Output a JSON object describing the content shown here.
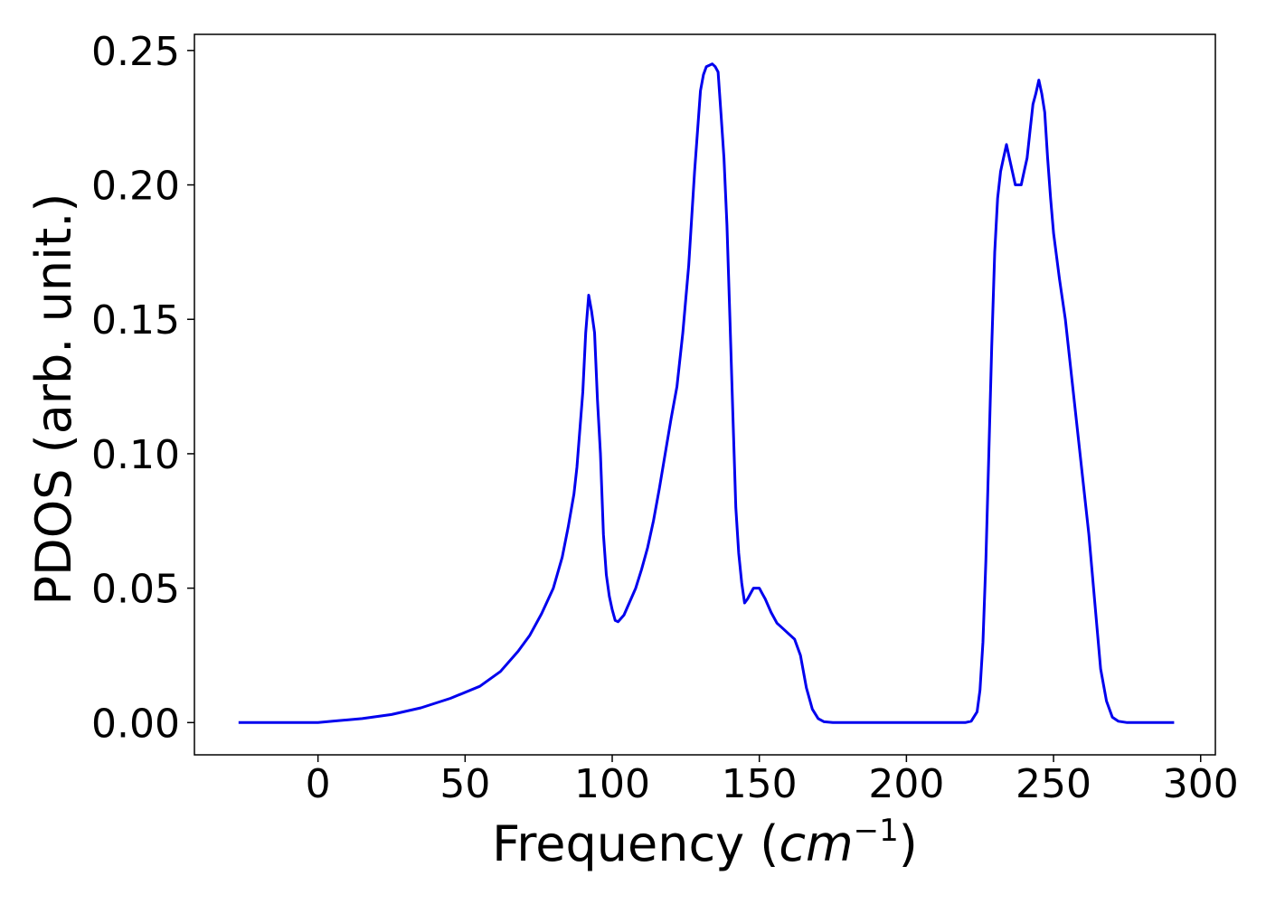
{
  "chart_data": {
    "type": "line",
    "title": "",
    "xlabel": "Frequency (",
    "xlabel_math": "cm",
    "xlabel_sup": "−1",
    "xlabel_close": ")",
    "ylabel": "PDOS (arb. unit.)",
    "xlim": [
      -42,
      305
    ],
    "ylim": [
      -0.012,
      0.256
    ],
    "xticks": [
      0,
      50,
      100,
      150,
      200,
      250,
      300
    ],
    "xtick_labels": [
      "0",
      "50",
      "100",
      "150",
      "200",
      "250",
      "300"
    ],
    "yticks": [
      0.0,
      0.05,
      0.1,
      0.15,
      0.2,
      0.25
    ],
    "ytick_labels": [
      "0.00",
      "0.05",
      "0.10",
      "0.15",
      "0.20",
      "0.25"
    ],
    "grid": false,
    "legend": "none",
    "series": [
      {
        "color": "#0000ee",
        "x": [
          -27,
          -10,
          0,
          5,
          15,
          25,
          35,
          45,
          55,
          62,
          68,
          72,
          76,
          80,
          83,
          85,
          87,
          88,
          90,
          91,
          92,
          93,
          94,
          95,
          96,
          97,
          98,
          99,
          100,
          101,
          102,
          104,
          106,
          108,
          110,
          112,
          114,
          116,
          118,
          120,
          122,
          124,
          126,
          128,
          130,
          131,
          132,
          133,
          134,
          135,
          136,
          137,
          138,
          139,
          140,
          141,
          142,
          143,
          144,
          145,
          146,
          147,
          148,
          149,
          150,
          151,
          152,
          154,
          156,
          158,
          160,
          162,
          164,
          166,
          168,
          170,
          172,
          175,
          180,
          200,
          220,
          222,
          224,
          225,
          226,
          227,
          228,
          229,
          230,
          231,
          232,
          233,
          234,
          235,
          236,
          237,
          238,
          239,
          240,
          241,
          242,
          243,
          244,
          245,
          246,
          247,
          248,
          249,
          250,
          252,
          254,
          256,
          258,
          260,
          262,
          264,
          266,
          268,
          270,
          272,
          275,
          280,
          291
        ],
        "y": [
          0.0,
          0.0,
          0.0,
          0.0005,
          0.0015,
          0.003,
          0.0055,
          0.009,
          0.0135,
          0.019,
          0.0265,
          0.0325,
          0.0405,
          0.05,
          0.0615,
          0.0725,
          0.085,
          0.095,
          0.123,
          0.145,
          0.159,
          0.153,
          0.145,
          0.12,
          0.1,
          0.07,
          0.055,
          0.047,
          0.042,
          0.038,
          0.0375,
          0.04,
          0.045,
          0.05,
          0.057,
          0.065,
          0.075,
          0.087,
          0.1,
          0.113,
          0.125,
          0.145,
          0.17,
          0.205,
          0.235,
          0.241,
          0.244,
          0.2445,
          0.245,
          0.244,
          0.242,
          0.226,
          0.21,
          0.185,
          0.15,
          0.115,
          0.08,
          0.063,
          0.052,
          0.0445,
          0.046,
          0.048,
          0.05,
          0.05,
          0.05,
          0.048,
          0.046,
          0.041,
          0.037,
          0.035,
          0.033,
          0.031,
          0.025,
          0.013,
          0.005,
          0.0015,
          0.0003,
          0.0,
          0.0,
          0.0,
          0.0,
          0.0005,
          0.004,
          0.012,
          0.03,
          0.06,
          0.1,
          0.14,
          0.175,
          0.195,
          0.205,
          0.21,
          0.215,
          0.21,
          0.205,
          0.2,
          0.2,
          0.2,
          0.205,
          0.21,
          0.22,
          0.23,
          0.234,
          0.239,
          0.234,
          0.227,
          0.21,
          0.195,
          0.182,
          0.165,
          0.15,
          0.13,
          0.11,
          0.09,
          0.07,
          0.045,
          0.02,
          0.008,
          0.002,
          0.0005,
          0.0,
          0.0,
          0.0
        ]
      }
    ]
  }
}
